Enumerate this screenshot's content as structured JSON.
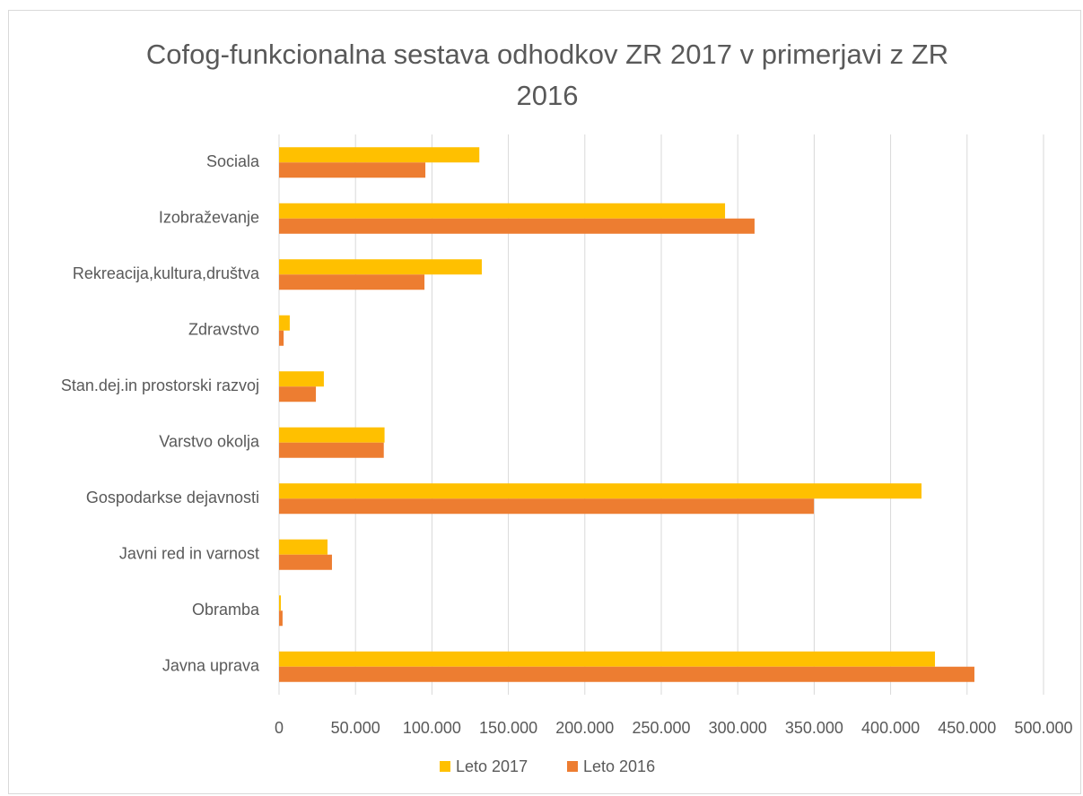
{
  "chart_data": {
    "type": "barh",
    "title": "Cofog-funkcionalna sestava odhodkov ZR 2017 v primerjavi z ZR 2016",
    "categories": [
      "Sociala",
      "Izobraževanje",
      "Rekreacija,kultura,društva",
      "Zdravstvo",
      "Stan.dej.in prostorski razvoj",
      "Varstvo okolja",
      "Gospodarkse dejavnosti",
      "Javni red in varnost",
      "Obramba",
      "Javna uprava"
    ],
    "series": [
      {
        "name": "Leto 2017",
        "color": "#ffc000",
        "values": [
          131000,
          291700,
          132600,
          7000,
          29300,
          69000,
          420200,
          31700,
          1200,
          429000
        ]
      },
      {
        "name": "Leto 2016",
        "color": "#ed7d31",
        "values": [
          95700,
          311000,
          95100,
          3000,
          24100,
          68500,
          349800,
          34600,
          2300,
          454800
        ]
      }
    ],
    "xlim": [
      0,
      500000
    ],
    "xticks": [
      0,
      {
        "value": 50000,
        "label": "50.000"
      },
      {
        "value": 100000,
        "label": "100.000"
      },
      {
        "value": 150000,
        "label": "150.000"
      },
      {
        "value": 200000,
        "label": "200.000"
      },
      {
        "value": 250000,
        "label": "250.000"
      },
      {
        "value": 300000,
        "label": "300.000"
      },
      {
        "value": 350000,
        "label": "350.000"
      },
      {
        "value": 400000,
        "label": "400.000"
      },
      {
        "value": 450000,
        "label": "450.000"
      },
      {
        "value": 500000,
        "label": "500.000"
      }
    ],
    "grid": true,
    "legend": "bottom"
  }
}
